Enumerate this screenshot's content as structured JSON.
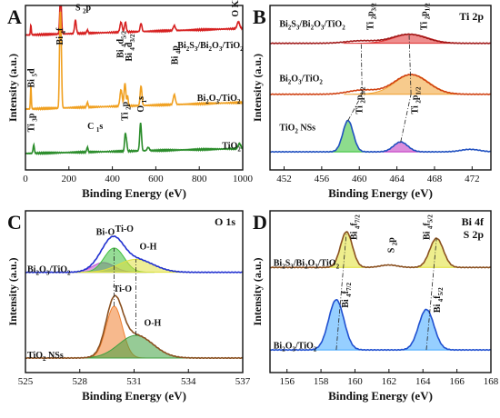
{
  "figure": {
    "background": "#ffffff"
  },
  "chart_data": [
    {
      "panel": "A",
      "type": "line",
      "title": "",
      "xlabel": "Binding Energy (eV)",
      "ylabel": "Intensity (a.u.)",
      "xlim": [
        0,
        1000
      ],
      "ylim": [
        0,
        100
      ],
      "xticks": [
        "0",
        "200",
        "400",
        "600",
        "800",
        "1000"
      ],
      "xtick_values": [
        0,
        200,
        400,
        600,
        800,
        1000
      ],
      "series": [
        {
          "name": "Bi2S3/Bi2O3/TiO2",
          "color": "#d62020",
          "baseline": 82,
          "slope": 0.004,
          "peaks": [
            [
              25,
              2,
              6
            ],
            [
              160,
              3,
              16
            ],
            [
              164,
              3,
              13
            ],
            [
              230,
              4,
              8
            ],
            [
              285,
              3,
              2
            ],
            [
              440,
              5,
              6
            ],
            [
              460,
              4,
              6
            ],
            [
              532,
              4,
              5
            ],
            [
              685,
              5,
              3
            ],
            [
              980,
              6,
              4
            ]
          ]
        },
        {
          "name": "Bi2O3/TiO2",
          "color": "#f0a020",
          "baseline": 37,
          "slope": 0.004,
          "peaks": [
            [
              25,
              2,
              14
            ],
            [
              159,
              3,
              46
            ],
            [
              164,
              3,
              36
            ],
            [
              285,
              3,
              3
            ],
            [
              440,
              5,
              10
            ],
            [
              458,
              4,
              14
            ],
            [
              470,
              3,
              6
            ],
            [
              532,
              4,
              12
            ],
            [
              685,
              5,
              6
            ]
          ]
        },
        {
          "name": "TiO2",
          "color": "#2a8c2a",
          "baseline": 10,
          "slope": 0.003,
          "peaks": [
            [
              38,
              3,
              5
            ],
            [
              285,
              3,
              3
            ],
            [
              459,
              3,
              10
            ],
            [
              465,
              3,
              6
            ],
            [
              530,
              4,
              17
            ],
            [
              565,
              5,
              2
            ],
            [
              985,
              6,
              3
            ]
          ]
        }
      ],
      "annotations": [
        {
          "text": "S 2p",
          "x": 230,
          "y": 97,
          "rotate": false
        },
        {
          "text": "O KLL",
          "x": 980,
          "y": 93,
          "rotate": true
        },
        {
          "text": "Bi 4f",
          "x": 172,
          "y": 76,
          "rotate": true
        },
        {
          "text": "Bi 4d5/2",
          "x": 450,
          "y": 68,
          "rotate": true
        },
        {
          "text": "Bi 4d3/2",
          "x": 490,
          "y": 66,
          "rotate": true
        },
        {
          "text": "Bi 4p",
          "x": 700,
          "y": 64,
          "rotate": true
        },
        {
          "text": "Bi 5d",
          "x": 40,
          "y": 50,
          "rotate": true
        },
        {
          "text": "Ti 3p",
          "x": 40,
          "y": 23,
          "rotate": true
        },
        {
          "text": "C 1s",
          "x": 285,
          "y": 25,
          "rotate": false
        },
        {
          "text": "Ti 2p",
          "x": 470,
          "y": 30,
          "rotate": true
        },
        {
          "text": "O 1s",
          "x": 545,
          "y": 35,
          "rotate": true
        },
        {
          "text": "Bi2S3/Bi2O3/TiO2",
          "x": 700,
          "y": 74,
          "rotate": false
        },
        {
          "text": "Bi2O3/TiO2",
          "x": 790,
          "y": 42,
          "rotate": false
        },
        {
          "text": "TiO2",
          "x": 905,
          "y": 13,
          "rotate": false
        }
      ]
    },
    {
      "panel": "B",
      "type": "line",
      "title": "Ti 2p",
      "xlabel": "Binding Energy (eV)",
      "ylabel": "Intensity (a.u.)",
      "xlim": [
        450.5,
        474
      ],
      "ylim": [
        0,
        100
      ],
      "xticks": [
        "452",
        "456",
        "460",
        "464",
        "468",
        "472"
      ],
      "xtick_values": [
        452,
        456,
        460,
        464,
        468,
        472
      ],
      "series": [
        {
          "name": "Bi2S3/Bi2O3/TiO2",
          "color": "#a01818",
          "baseline": 77,
          "peaks": [
            [
              465.3,
              1.8,
              5.5
            ],
            [
              460.2,
              1.6,
              1.5
            ]
          ],
          "fills": [
            {
              "center": 465.5,
              "sigma": 1.8,
              "amp": 5.5,
              "color": "#e03030"
            }
          ]
        },
        {
          "name": "Bi2O3/TiO2",
          "color": "#d04010",
          "baseline": 46,
          "peaks": [
            [
              465.5,
              1.8,
              12
            ],
            [
              460.3,
              1.5,
              2.5
            ]
          ],
          "fills": [
            {
              "center": 465.6,
              "sigma": 1.8,
              "amp": 12,
              "color": "#f0a030"
            }
          ]
        },
        {
          "name": "TiO2 NSs",
          "color": "#2050c0",
          "baseline": 11,
          "peaks": [
            [
              458.8,
              0.55,
              19
            ],
            [
              464.4,
              0.75,
              6
            ],
            [
              471.8,
              1.0,
              1.5
            ]
          ],
          "fills": [
            {
              "center": 458.8,
              "sigma": 0.55,
              "amp": 19,
              "color": "#30c030"
            },
            {
              "center": 464.4,
              "sigma": 0.75,
              "amp": 6,
              "color": "#c030c0"
            }
          ]
        }
      ],
      "annotations": [
        {
          "text": "Bi2S3/Bi2O3/TiO2",
          "x": 451.5,
          "y": 87,
          "rotate": false
        },
        {
          "text": "Bi2O3/TiO2",
          "x": 451.5,
          "y": 54,
          "rotate": false
        },
        {
          "text": "TiO2 NSs",
          "x": 451.5,
          "y": 24,
          "rotate": false
        },
        {
          "text": "Ti 2p3/2",
          "x": 461.5,
          "y": 85,
          "rotate": true
        },
        {
          "text": "Ti 2p1/2",
          "x": 467.2,
          "y": 85,
          "rotate": true
        },
        {
          "text": "Ti 2p3/2",
          "x": 460.3,
          "y": 34,
          "rotate": true
        },
        {
          "text": "Ti 2p1/2",
          "x": 466.2,
          "y": 34,
          "rotate": true
        }
      ]
    },
    {
      "panel": "C",
      "type": "line",
      "title": "O 1s",
      "xlabel": "Binding Energy (eV)",
      "ylabel": "Intensity (a.u.)",
      "xlim": [
        525,
        537
      ],
      "ylim": [
        0,
        100
      ],
      "xticks": [
        "525",
        "528",
        "531",
        "534",
        "537"
      ],
      "xtick_values": [
        525,
        528,
        531,
        534,
        537
      ],
      "series": [
        {
          "name": "Bi2O3/TiO2",
          "color": "#2030d0",
          "baseline": 62,
          "peaks": [
            [
              529.3,
              0.6,
              6
            ],
            [
              529.9,
              0.55,
              15
            ],
            [
              531.1,
              0.95,
              8
            ]
          ],
          "fills": [
            {
              "center": 529.3,
              "sigma": 0.6,
              "amp": 6,
              "color": "#c050d0"
            },
            {
              "center": 529.9,
              "sigma": 0.55,
              "amp": 15,
              "color": "#40c040"
            },
            {
              "center": 531.1,
              "sigma": 0.95,
              "amp": 8,
              "color": "#e0e040"
            }
          ]
        },
        {
          "name": "TiO2 NSs",
          "color": "#8a5020",
          "baseline": 9,
          "peaks": [
            [
              529.9,
              0.45,
              32
            ],
            [
              531.1,
              0.95,
              14
            ]
          ],
          "fills": [
            {
              "center": 529.9,
              "sigma": 0.45,
              "amp": 32,
              "color": "#f08030"
            },
            {
              "center": 531.1,
              "sigma": 0.95,
              "amp": 14,
              "color": "#40a040"
            }
          ]
        }
      ],
      "annotations": [
        {
          "text": "Bi-O",
          "x": 528.9,
          "y": 85,
          "rotate": false
        },
        {
          "text": "Ti-O",
          "x": 529.95,
          "y": 87,
          "rotate": false
        },
        {
          "text": "O-H",
          "x": 531.3,
          "y": 76,
          "rotate": false
        },
        {
          "text": "Bi2O3/TiO2",
          "x": 525.1,
          "y": 62,
          "rotate": false
        },
        {
          "text": "Ti-O",
          "x": 529.85,
          "y": 50,
          "rotate": false
        },
        {
          "text": "O-H",
          "x": 531.55,
          "y": 29,
          "rotate": false
        },
        {
          "text": "TiO2 NSs",
          "x": 525.1,
          "y": 9,
          "rotate": false
        }
      ]
    },
    {
      "panel": "D",
      "type": "line",
      "title": "Bi 4f\nS 2p",
      "xlabel": "Binding Energy (eV)",
      "ylabel": "Intensity (a.u.)",
      "xlim": [
        155,
        168
      ],
      "ylim": [
        0,
        100
      ],
      "xticks": [
        "156",
        "158",
        "160",
        "162",
        "164",
        "166",
        "168"
      ],
      "xtick_values": [
        156,
        158,
        160,
        162,
        164,
        166,
        168
      ],
      "series": [
        {
          "name": "Bi2S3/Bi2O3/TiO2",
          "color": "#8a5020",
          "baseline": 65,
          "peaks": [
            [
              159.5,
              0.35,
              22
            ],
            [
              162.0,
              0.5,
              1.5
            ],
            [
              164.8,
              0.4,
              18
            ]
          ],
          "fills": [
            {
              "center": 159.5,
              "sigma": 0.35,
              "amp": 22,
              "color": "#e0e030"
            },
            {
              "center": 164.8,
              "sigma": 0.4,
              "amp": 18,
              "color": "#e0e030"
            }
          ]
        },
        {
          "name": "Bi2O3/TiO2",
          "color": "#2050d0",
          "baseline": 14,
          "peaks": [
            [
              158.9,
              0.45,
              31
            ],
            [
              164.2,
              0.45,
              25
            ]
          ],
          "fills": [
            {
              "center": 158.9,
              "sigma": 0.45,
              "amp": 31,
              "color": "#40a8ff"
            },
            {
              "center": 164.2,
              "sigma": 0.45,
              "amp": 25,
              "color": "#40a8ff"
            }
          ]
        }
      ],
      "annotations": [
        {
          "text": "Bi 4f7/2",
          "x": 160.1,
          "y": 82,
          "rotate": true
        },
        {
          "text": "S 2p",
          "x": 162.3,
          "y": 74,
          "rotate": true
        },
        {
          "text": "Bi 4f5/2",
          "x": 164.4,
          "y": 82,
          "rotate": true
        },
        {
          "text": "Bi2S3/Bi2O3/TiO2",
          "x": 155.2,
          "y": 66,
          "rotate": false
        },
        {
          "text": "Bi 4f7/2",
          "x": 159.6,
          "y": 40,
          "rotate": true
        },
        {
          "text": "Bi 4f5/2",
          "x": 165.0,
          "y": 37,
          "rotate": true
        },
        {
          "text": "Bi2O3/TiO2",
          "x": 155.2,
          "y": 15,
          "rotate": false
        }
      ]
    }
  ]
}
